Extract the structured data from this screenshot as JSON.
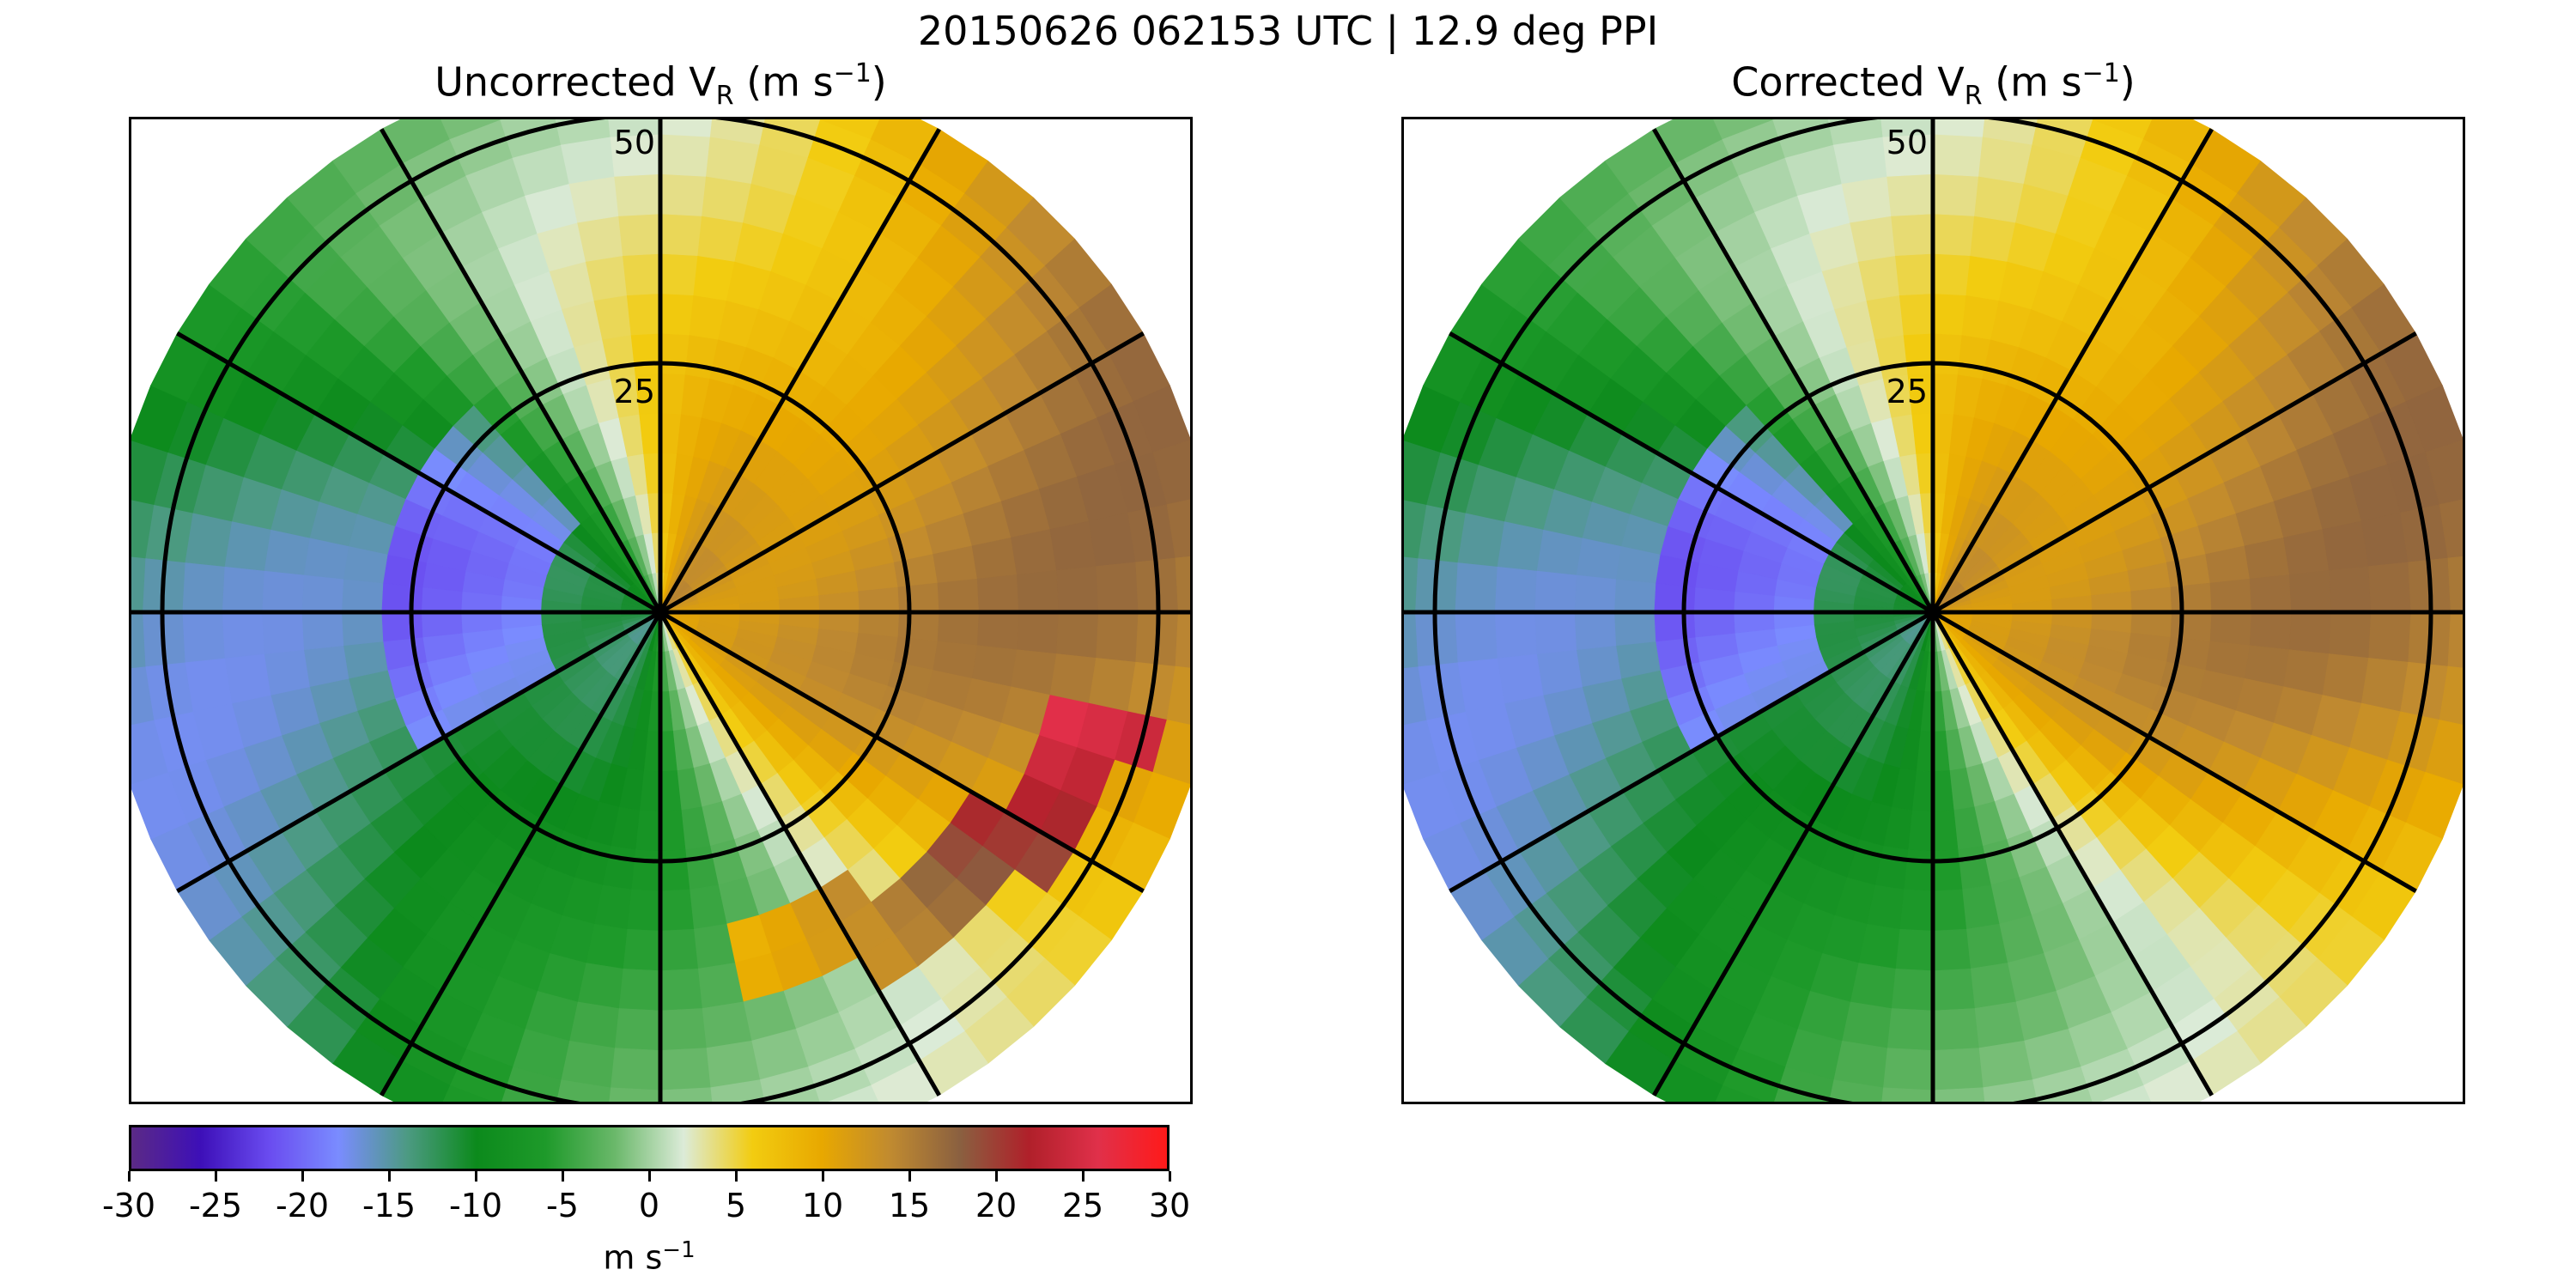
{
  "figure": {
    "suptitle": "20150626 062153 UTC | 12.9 deg PPI"
  },
  "panels": [
    {
      "title_main": "Uncorrected V",
      "title_sub": "R",
      "title_unit": " (m s",
      "title_exp": "−1",
      "title_close": ")"
    },
    {
      "title_main": "Corrected V",
      "title_sub": "R",
      "title_unit": " (m s",
      "title_exp": "−1",
      "title_close": ")"
    }
  ],
  "chart_data": {
    "type": "heatmap",
    "description_type": "polar radar PPI",
    "range_rings": [
      25,
      50
    ],
    "ring_labels": [
      "25",
      "50"
    ],
    "azimuth_spokes_deg": [
      0,
      30,
      60,
      90,
      120,
      150,
      180,
      210,
      240,
      270,
      300,
      330
    ],
    "colorbar": {
      "ticks": [
        -30,
        -25,
        -20,
        -15,
        -10,
        -5,
        0,
        5,
        10,
        15,
        20,
        25,
        30
      ],
      "tick_labels": [
        "-30",
        "-25",
        "-20",
        "-15",
        "-10",
        "-5",
        "0",
        "5",
        "10",
        "15",
        "20",
        "25",
        "30"
      ],
      "range": [
        -30,
        30
      ],
      "label_main": "m s",
      "label_exp": "−1",
      "colors": [
        "#5b2a86",
        "#3d0fb8",
        "#6a4cf0",
        "#7a8cff",
        "#4c9a82",
        "#0c8a1c",
        "#1e9a2a",
        "#6ab86a",
        "#dcebd8",
        "#f2cc10",
        "#e8a800",
        "#c08a30",
        "#8a6040",
        "#b0202a",
        "#e0304a",
        "#ff1a1a"
      ]
    }
  }
}
